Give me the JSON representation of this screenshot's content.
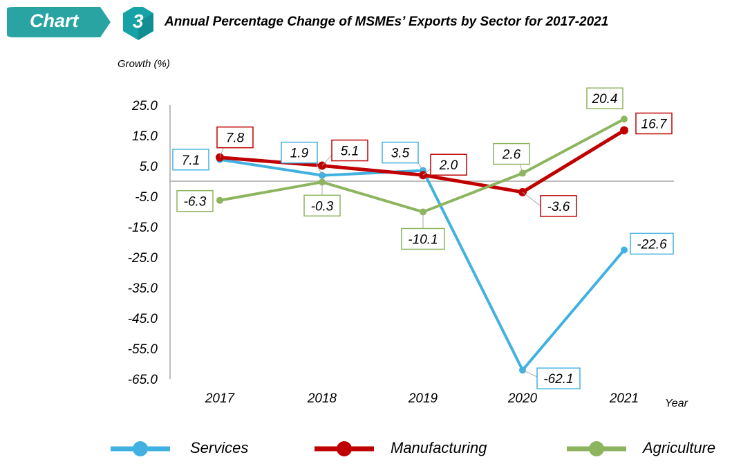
{
  "header": {
    "tag_label": "Chart",
    "chart_number": "3",
    "title": "Annual Percentage Change of MSMEs’ Exports by Sector for 2017-2021",
    "tag_color": "#2aa3a3",
    "number_color": "#17a3a6"
  },
  "chart_data": {
    "type": "line",
    "title": "Annual Percentage Change of MSMEs’ Exports by Sector for 2017-2021",
    "xlabel": "Year",
    "ylabel": "Growth (%)",
    "categories": [
      "2017",
      "2018",
      "2019",
      "2020",
      "2021"
    ],
    "ylim": [
      -65,
      25
    ],
    "yticks": [
      25,
      15,
      5,
      -5,
      -15,
      -25,
      -35,
      -45,
      -55,
      -65
    ],
    "ytick_labels": [
      "25.0",
      "15.0",
      "5.0",
      "-5.0",
      "-15.0",
      "-25.0",
      "-35.0",
      "-45.0",
      "-55.0",
      "-65.0"
    ],
    "grid": false,
    "zero_line": true,
    "legend_position": "bottom",
    "series": [
      {
        "name": "Services",
        "color": "#41b1e1",
        "values": [
          7.1,
          1.9,
          3.5,
          -62.1,
          -22.6
        ],
        "labels": [
          "7.1",
          "1.9",
          "3.5",
          "-62.1",
          "-22.6"
        ]
      },
      {
        "name": "Manufacturing",
        "color": "#c00000",
        "values": [
          7.8,
          5.1,
          2.0,
          -3.6,
          16.7
        ],
        "labels": [
          "7.8",
          "5.1",
          "2.0",
          "-3.6",
          "16.7"
        ]
      },
      {
        "name": "Agriculture",
        "color": "#8db45e",
        "values": [
          -6.3,
          -0.3,
          -10.1,
          2.6,
          20.4
        ],
        "labels": [
          "-6.3",
          "-0.3",
          "-10.1",
          "2.6",
          "20.4"
        ]
      }
    ]
  }
}
